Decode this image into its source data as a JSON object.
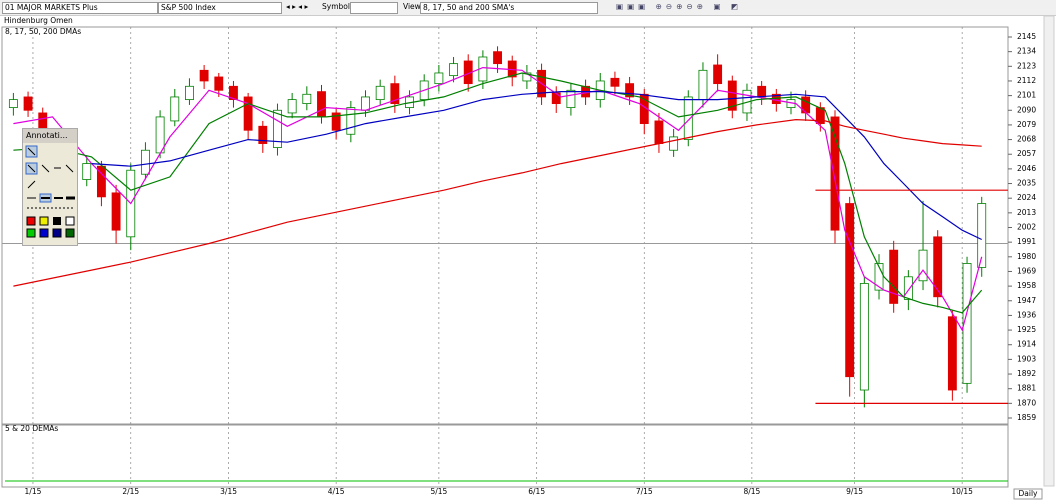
{
  "toolbar": {
    "list": "01 MAJOR MARKETS Plus",
    "index": "S&P 500 Index",
    "symbol_label": "Symbol:",
    "view_label": "View:",
    "view": "8, 17, 50 and 200 SMA's"
  },
  "tab": "Hindenburg Omen",
  "annotation_palette_title": "Annotati...",
  "lower_panel_label": "5 & 20 DEMAs",
  "period": "Daily",
  "chart_data": {
    "type": "candlestick",
    "label": "8, 17, 50, 200 DMAs",
    "x": [
      -4,
      -1,
      2,
      5,
      8,
      11,
      14,
      17,
      20,
      23,
      26,
      29,
      32,
      35,
      38,
      41,
      44,
      47,
      50,
      53,
      56,
      59,
      62,
      65,
      68,
      71,
      74,
      77,
      80,
      83,
      86,
      89,
      92,
      95,
      98,
      101,
      104,
      107,
      110,
      113,
      116,
      119,
      122,
      125,
      128,
      131,
      134,
      137,
      140,
      143,
      146,
      149,
      152,
      155,
      158,
      161,
      164,
      167,
      170,
      173,
      176,
      179,
      182,
      185,
      188,
      191,
      194
    ],
    "open": [
      2092,
      2100,
      2088,
      2072,
      2058,
      2038,
      2048,
      2028,
      1995,
      2042,
      2058,
      2082,
      2098,
      2120,
      2115,
      2108,
      2100,
      2078,
      2062,
      2088,
      2095,
      2104,
      2088,
      2072,
      2090,
      2098,
      2110,
      2092,
      2098,
      2110,
      2116,
      2127,
      2112,
      2134,
      2127,
      2112,
      2120,
      2103,
      2092,
      2108,
      2098,
      2114,
      2110,
      2102,
      2082,
      2060,
      2068,
      2098,
      2124,
      2112,
      2088,
      2108,
      2102,
      2092,
      2100,
      2092,
      2085,
      2020,
      1880,
      1955,
      1985,
      1948,
      1962,
      1995,
      1935,
      1885,
      1972
    ],
    "high": [
      2103,
      2104,
      2092,
      2076,
      2062,
      2056,
      2052,
      2034,
      2050,
      2066,
      2090,
      2106,
      2114,
      2124,
      2118,
      2112,
      2103,
      2082,
      2095,
      2103,
      2108,
      2109,
      2092,
      2097,
      2105,
      2113,
      2116,
      2105,
      2117,
      2124,
      2130,
      2132,
      2135,
      2138,
      2131,
      2124,
      2125,
      2108,
      2110,
      2113,
      2118,
      2119,
      2115,
      2106,
      2088,
      2076,
      2105,
      2126,
      2132,
      2116,
      2110,
      2112,
      2106,
      2104,
      2105,
      2096,
      2090,
      2025,
      1965,
      1982,
      1992,
      1970,
      2022,
      2000,
      1940,
      1980,
      2025
    ],
    "low": [
      2086,
      2085,
      2064,
      2050,
      2030,
      2033,
      2018,
      1990,
      1985,
      2038,
      2054,
      2078,
      2094,
      2106,
      2100,
      2092,
      2068,
      2058,
      2056,
      2084,
      2090,
      2080,
      2068,
      2066,
      2085,
      2094,
      2088,
      2087,
      2093,
      2104,
      2111,
      2104,
      2106,
      2118,
      2108,
      2106,
      2094,
      2088,
      2086,
      2094,
      2092,
      2102,
      2094,
      2072,
      2058,
      2055,
      2063,
      2092,
      2104,
      2084,
      2082,
      2094,
      2089,
      2087,
      2082,
      2074,
      1990,
      1875,
      1867,
      1948,
      1938,
      1940,
      1955,
      1942,
      1872,
      1878,
      1965
    ],
    "close": [
      2098,
      2090,
      2070,
      2055,
      2040,
      2050,
      2025,
      2000,
      2045,
      2060,
      2085,
      2100,
      2108,
      2112,
      2105,
      2098,
      2075,
      2065,
      2090,
      2098,
      2102,
      2085,
      2075,
      2092,
      2100,
      2108,
      2095,
      2100,
      2112,
      2118,
      2125,
      2110,
      2130,
      2125,
      2115,
      2118,
      2100,
      2095,
      2105,
      2100,
      2112,
      2108,
      2100,
      2080,
      2065,
      2070,
      2100,
      2120,
      2110,
      2090,
      2105,
      2100,
      2095,
      2098,
      2088,
      2080,
      2000,
      1890,
      1960,
      1975,
      1945,
      1965,
      1985,
      1950,
      1880,
      1975,
      2020
    ],
    "up_color": "#008000",
    "down_color": "#e00000",
    "line_x": [
      -4,
      4,
      12,
      20,
      28,
      36,
      44,
      52,
      60,
      68,
      76,
      84,
      92,
      100,
      108,
      116,
      124,
      132,
      140,
      148,
      156,
      162,
      166,
      170,
      174,
      178,
      182,
      186,
      190,
      194
    ],
    "lines": [
      {
        "color": "#e000e0",
        "values": [
          2080,
          2085,
          2050,
          2020,
          2070,
          2105,
          2095,
          2078,
          2092,
          2090,
          2100,
          2110,
          2122,
          2120,
          2100,
          2105,
          2095,
          2075,
          2105,
          2100,
          2095,
          2075,
          2000,
          1965,
          1955,
          1950,
          1970,
          1950,
          1925,
          1980
        ]
      },
      {
        "color": "#008000",
        "values": [
          2060,
          2062,
          2055,
          2030,
          2040,
          2080,
          2095,
          2085,
          2085,
          2088,
          2095,
          2100,
          2110,
          2118,
          2112,
          2105,
          2100,
          2085,
          2090,
          2098,
          2100,
          2090,
          2050,
          1995,
          1965,
          1950,
          1945,
          1942,
          1938,
          1955
        ]
      },
      {
        "color": "#0000c0",
        "values": [
          null,
          null,
          2050,
          2048,
          2052,
          2060,
          2068,
          2066,
          2072,
          2080,
          2085,
          2090,
          2098,
          2102,
          2104,
          2104,
          2102,
          2098,
          2098,
          2100,
          2102,
          2100,
          2085,
          2070,
          2050,
          2035,
          2020,
          2010,
          2000,
          1993
        ]
      },
      {
        "color": "#e00000",
        "values": [
          1958,
          1964,
          1970,
          1976,
          1983,
          1990,
          1998,
          2006,
          2012,
          2018,
          2024,
          2030,
          2037,
          2043,
          2050,
          2056,
          2062,
          2068,
          2074,
          2079,
          2083,
          2082,
          2078,
          2075,
          2072,
          2069,
          2067,
          2065,
          2064,
          2063
        ]
      }
    ],
    "reference_lines": [
      {
        "value": 1990,
        "color": "#999999"
      }
    ],
    "annotation_lines": [
      {
        "value": 2030,
        "x_start": 160,
        "color": "#e00000"
      },
      {
        "value": 1870,
        "x_start": 160,
        "color": "#e00000"
      }
    ],
    "xlim": [
      -5,
      196
    ],
    "xticks": [
      {
        "value": 0,
        "label": "1/15"
      },
      {
        "value": 20,
        "label": "2/15"
      },
      {
        "value": 40,
        "label": "3/15"
      },
      {
        "value": 62,
        "label": "4/15"
      },
      {
        "value": 83,
        "label": "5/15"
      },
      {
        "value": 103,
        "label": "6/15"
      },
      {
        "value": 125,
        "label": "7/15"
      },
      {
        "value": 147,
        "label": "8/15"
      },
      {
        "value": 168,
        "label": "9/15"
      },
      {
        "value": 190,
        "label": "10/15"
      }
    ],
    "ylim": [
      1859,
      2145
    ],
    "yticks": [
      1859,
      1870,
      1881,
      1892,
      1903,
      1914,
      1925,
      1936,
      1947,
      1958,
      1969,
      1980,
      1991,
      2002,
      2013,
      2024,
      2035,
      2046,
      2057,
      2068,
      2079,
      2090,
      2101,
      2112,
      2123,
      2134,
      2145
    ]
  }
}
